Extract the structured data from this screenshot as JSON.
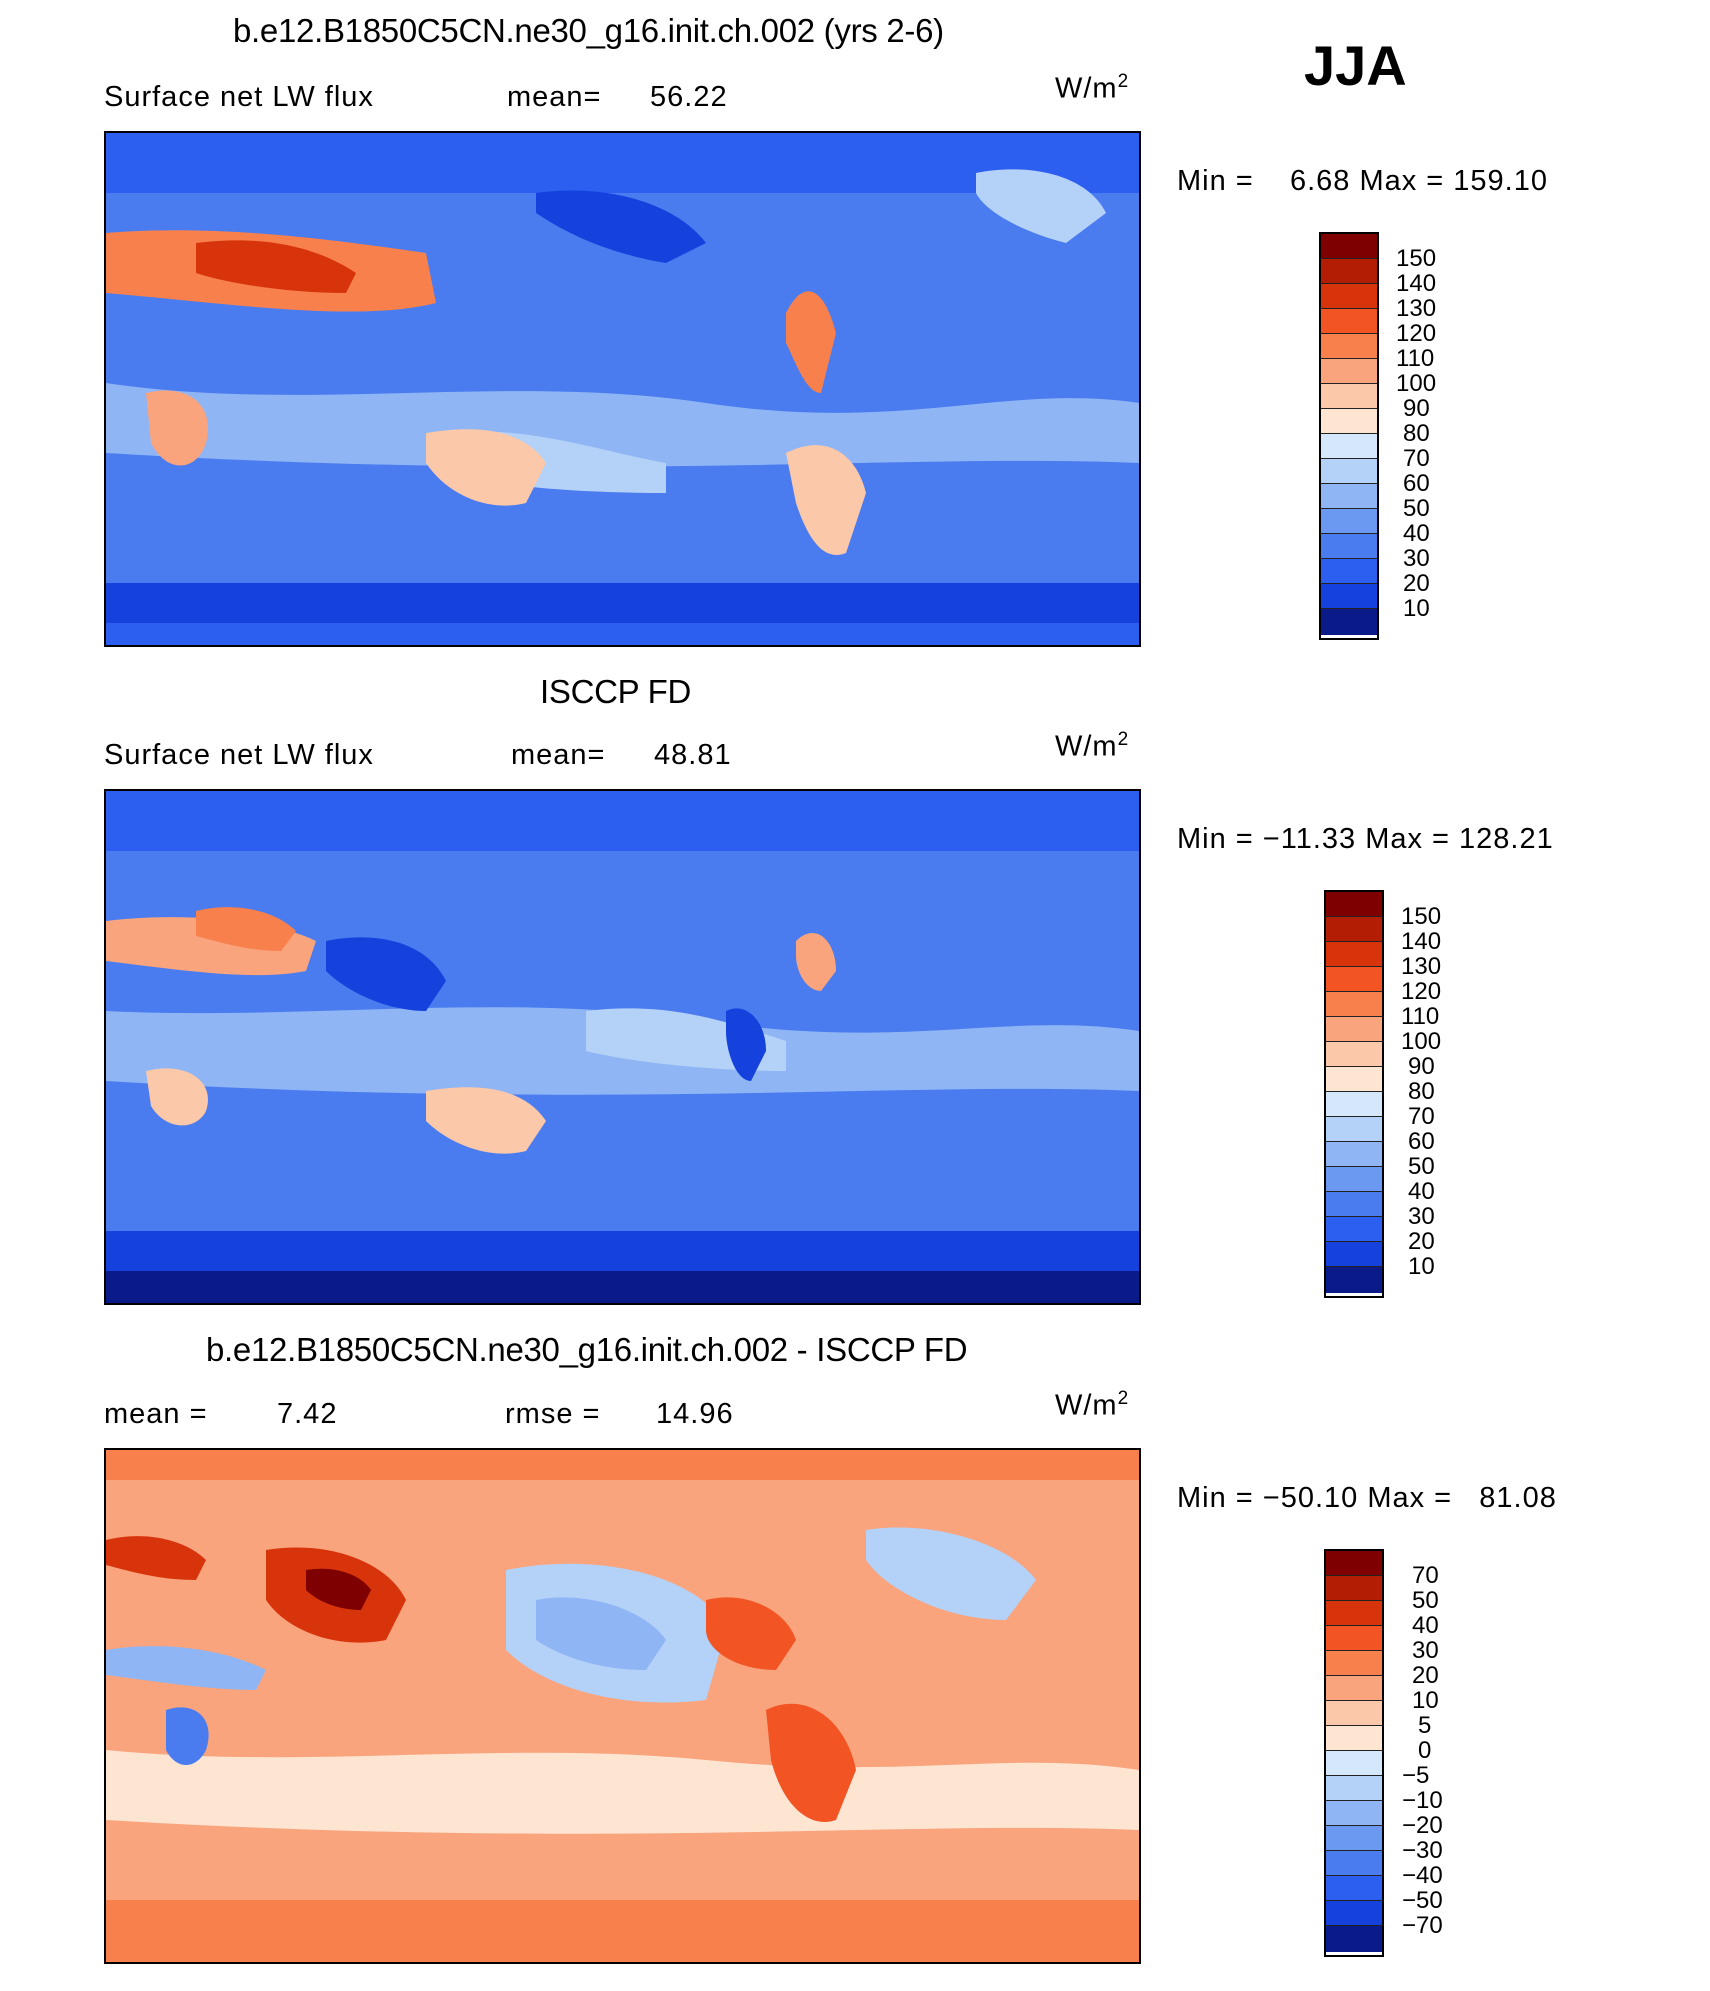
{
  "season": "JJA",
  "panels": [
    {
      "id": "model",
      "title": "b.e12.B1850C5CN.ne30_g16.init.ch.002 (yrs 2-6)",
      "left_label": "Surface net LW flux",
      "stat_label": "mean=",
      "stat_value": "56.22",
      "units_base": "W/m",
      "units_exp": "2",
      "minmax": "Min =    6.68 Max = 159.10",
      "colorbar_labels": [
        "150",
        "140",
        "130",
        "120",
        "110",
        "100",
        "90",
        "80",
        "70",
        "60",
        "50",
        "40",
        "30",
        "20",
        "10"
      ],
      "colors": [
        "#7f0000",
        "#b21d04",
        "#d8340c",
        "#f25523",
        "#f7804d",
        "#f9a47d",
        "#fcc8aa",
        "#fde5d2",
        "#d5e7fa",
        "#b4d1f7",
        "#8fb5f4",
        "#6b98f0",
        "#4a7cef",
        "#2c5ef0",
        "#1541dd",
        "#0a2ab9",
        "#0a1a88"
      ]
    },
    {
      "id": "obs",
      "title": "ISCCP FD",
      "left_label": "Surface net LW flux",
      "stat_label": "mean=",
      "stat_value": "48.81",
      "units_base": "W/m",
      "units_exp": "2",
      "minmax": "Min = −11.33 Max = 128.21",
      "colorbar_labels": [
        "150",
        "140",
        "130",
        "120",
        "110",
        "100",
        "90",
        "80",
        "70",
        "60",
        "50",
        "40",
        "30",
        "20",
        "10"
      ]
    },
    {
      "id": "diff",
      "title": "b.e12.B1850C5CN.ne30_g16.init.ch.002 - ISCCP FD",
      "left_label": "mean =",
      "left_value": "7.42",
      "stat_label": "rmse =",
      "stat_value": "14.96",
      "units_base": "W/m",
      "units_exp": "2",
      "minmax": "Min = −50.10 Max =   81.08",
      "colorbar_labels": [
        "70",
        "50",
        "40",
        "30",
        "20",
        "10",
        "5",
        "0",
        "−5",
        "−10",
        "−20",
        "−30",
        "−40",
        "−50",
        "−70"
      ]
    }
  ]
}
